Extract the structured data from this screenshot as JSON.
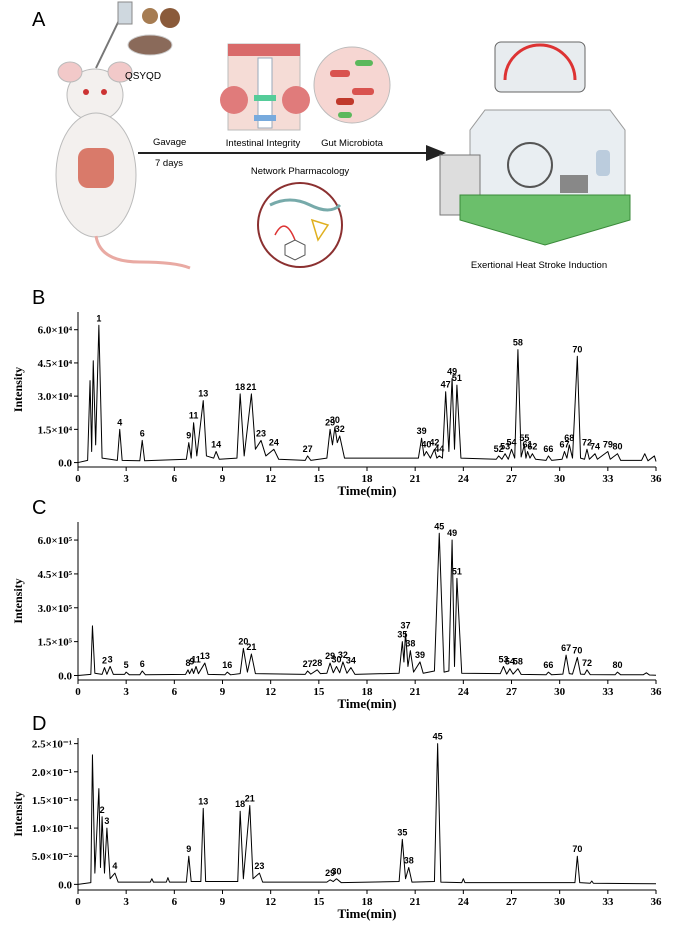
{
  "panel_a": {
    "label": "A",
    "drug": "QSYQD",
    "gavage": "Gavage",
    "duration": "7 days",
    "intestinal": "Intestinal Integrity",
    "microbiota": "Gut Microbiota",
    "network": "Network Pharmacology",
    "model": "Exertional Heat Stroke Induction"
  },
  "chart_data": [
    {
      "type": "line",
      "panel": "B",
      "ylabel": "Intensity",
      "xlabel": "Time(min)",
      "color": "#000000",
      "xlim": [
        0,
        36
      ],
      "xticks": [
        0,
        3,
        6,
        9,
        12,
        15,
        18,
        21,
        24,
        27,
        30,
        33,
        36
      ],
      "ylim": [
        -2000,
        68000
      ],
      "yticks": [
        {
          "value": 0,
          "label": "0.0"
        },
        {
          "value": 15000,
          "label": "1.5×10⁴"
        },
        {
          "value": 30000,
          "label": "3.0×10⁴"
        },
        {
          "value": 45000,
          "label": "4.5×10⁴"
        },
        {
          "value": 60000,
          "label": "6.0×10⁴"
        }
      ],
      "x": [
        0,
        0.6,
        0.75,
        0.85,
        0.95,
        1.1,
        1.3,
        1.5,
        2.0,
        2.45,
        2.6,
        2.75,
        3.85,
        4.0,
        4.15,
        6.75,
        6.9,
        7.05,
        7.2,
        7.4,
        7.8,
        8.0,
        8.45,
        8.6,
        8.8,
        9.9,
        10.1,
        10.35,
        10.8,
        11.05,
        11.4,
        11.7,
        12.2,
        12.5,
        14.15,
        14.3,
        14.5,
        15.5,
        15.7,
        15.85,
        16.0,
        16.15,
        16.3,
        16.6,
        21.2,
        21.4,
        21.55,
        21.7,
        21.95,
        22.2,
        22.35,
        22.5,
        22.7,
        22.9,
        23.1,
        23.3,
        23.45,
        23.6,
        23.85,
        26.05,
        26.2,
        26.4,
        26.6,
        26.8,
        27.0,
        27.2,
        27.4,
        27.6,
        27.8,
        27.9,
        28.0,
        28.15,
        28.3,
        28.5,
        29.15,
        29.3,
        29.5,
        30.15,
        30.3,
        30.45,
        30.6,
        30.8,
        31.1,
        31.3,
        31.55,
        31.7,
        31.85,
        32.2,
        32.35,
        33.0,
        33.15,
        33.6,
        33.8,
        35.1,
        35.3,
        35.5,
        35.9,
        36
      ],
      "values": [
        0,
        1000,
        37000,
        5000,
        46000,
        8000,
        62000,
        2000,
        1500,
        1000,
        15000,
        1000,
        800,
        10000,
        800,
        1500,
        9000,
        2000,
        18000,
        3000,
        28000,
        3000,
        2000,
        5000,
        1500,
        2000,
        31000,
        3000,
        31000,
        6000,
        10000,
        3000,
        6000,
        1500,
        1000,
        3000,
        1000,
        2000,
        15000,
        8000,
        16000,
        9000,
        12000,
        2000,
        2000,
        11000,
        3000,
        5000,
        2000,
        6000,
        2000,
        3000,
        2000,
        32000,
        5000,
        38000,
        6000,
        35000,
        2000,
        1500,
        3000,
        1500,
        4000,
        1500,
        6000,
        2000,
        51000,
        2500,
        8000,
        2000,
        5000,
        2000,
        4000,
        1500,
        1000,
        3000,
        1000,
        1500,
        5000,
        2000,
        8000,
        2000,
        48000,
        2000,
        1500,
        6000,
        1500,
        4000,
        1500,
        5000,
        1500,
        4000,
        1000,
        1000,
        4000,
        800,
        3000,
        500
      ],
      "annotations": [
        {
          "text": "1",
          "x": 1.3,
          "y": 62000
        },
        {
          "text": "4",
          "x": 2.6,
          "y": 15000
        },
        {
          "text": "6",
          "x": 4.0,
          "y": 10000
        },
        {
          "text": "9",
          "x": 6.9,
          "y": 9000
        },
        {
          "text": "11",
          "x": 7.2,
          "y": 18000
        },
        {
          "text": "13",
          "x": 7.8,
          "y": 28000
        },
        {
          "text": "14",
          "x": 8.6,
          "y": 5000
        },
        {
          "text": "18",
          "x": 10.1,
          "y": 31000
        },
        {
          "text": "21",
          "x": 10.8,
          "y": 31000
        },
        {
          "text": "23",
          "x": 11.4,
          "y": 10000
        },
        {
          "text": "24",
          "x": 12.2,
          "y": 6000
        },
        {
          "text": "27",
          "x": 14.3,
          "y": 3000
        },
        {
          "text": "29",
          "x": 15.7,
          "y": 15000
        },
        {
          "text": "30",
          "x": 16.0,
          "y": 16000
        },
        {
          "text": "32",
          "x": 16.3,
          "y": 12000
        },
        {
          "text": "39",
          "x": 21.4,
          "y": 11000
        },
        {
          "text": "40",
          "x": 21.7,
          "y": 5000
        },
        {
          "text": "42",
          "x": 22.2,
          "y": 6000
        },
        {
          "text": "44",
          "x": 22.5,
          "y": 3000
        },
        {
          "text": "47",
          "x": 22.9,
          "y": 32000
        },
        {
          "text": "49",
          "x": 23.3,
          "y": 38000
        },
        {
          "text": "51",
          "x": 23.6,
          "y": 35000
        },
        {
          "text": "52",
          "x": 26.2,
          "y": 3000
        },
        {
          "text": "53",
          "x": 26.6,
          "y": 4000
        },
        {
          "text": "54",
          "x": 27.0,
          "y": 6000
        },
        {
          "text": "58",
          "x": 27.4,
          "y": 51000
        },
        {
          "text": "55",
          "x": 27.8,
          "y": 8000
        },
        {
          "text": "61",
          "x": 28.0,
          "y": 5000
        },
        {
          "text": "62",
          "x": 28.3,
          "y": 4000
        },
        {
          "text": "66",
          "x": 29.3,
          "y": 3000
        },
        {
          "text": "67",
          "x": 30.3,
          "y": 5000
        },
        {
          "text": "68",
          "x": 30.6,
          "y": 8000
        },
        {
          "text": "70",
          "x": 31.1,
          "y": 48000
        },
        {
          "text": "72",
          "x": 31.7,
          "y": 6000
        },
        {
          "text": "74",
          "x": 32.2,
          "y": 4000
        },
        {
          "text": "79",
          "x": 33.0,
          "y": 5000
        },
        {
          "text": "80",
          "x": 33.6,
          "y": 4000
        }
      ]
    },
    {
      "type": "line",
      "panel": "C",
      "ylabel": "Intensity",
      "xlabel": "Time(min)",
      "color": "#000000",
      "xlim": [
        0,
        36
      ],
      "xticks": [
        0,
        3,
        6,
        9,
        12,
        15,
        18,
        21,
        24,
        27,
        30,
        33,
        36
      ],
      "ylim": [
        -20000,
        680000
      ],
      "yticks": [
        {
          "value": 0,
          "label": "0.0"
        },
        {
          "value": 150000,
          "label": "1.5×10⁵"
        },
        {
          "value": 300000,
          "label": "3.0×10⁵"
        },
        {
          "value": 450000,
          "label": "4.5×10⁵"
        },
        {
          "value": 600000,
          "label": "6.0×10⁵"
        }
      ],
      "x": [
        0,
        0.8,
        0.9,
        1.05,
        1.5,
        1.65,
        1.8,
        2.0,
        2.2,
        2.9,
        3.0,
        3.2,
        3.85,
        4.0,
        4.2,
        6.7,
        6.85,
        6.95,
        7.1,
        7.2,
        7.35,
        7.5,
        7.9,
        8.1,
        9.15,
        9.3,
        9.5,
        10.1,
        10.3,
        10.55,
        10.8,
        11.05,
        14.15,
        14.3,
        14.5,
        14.9,
        15.1,
        15.5,
        15.7,
        15.9,
        16.1,
        16.3,
        16.5,
        16.75,
        17.0,
        17.25,
        20.0,
        20.2,
        20.3,
        20.4,
        20.55,
        20.7,
        20.9,
        21.3,
        21.5,
        22.2,
        22.5,
        22.8,
        23.1,
        23.3,
        23.45,
        23.6,
        23.9,
        26.3,
        26.5,
        26.7,
        26.9,
        27.1,
        27.4,
        27.6,
        29.15,
        29.3,
        29.5,
        30.2,
        30.4,
        30.6,
        30.8,
        31.1,
        31.3,
        31.55,
        31.7,
        31.9,
        33.45,
        33.6,
        33.8,
        35.2,
        35.4,
        35.6,
        36
      ],
      "values": [
        0,
        5000,
        220000,
        10000,
        5000,
        35000,
        5000,
        40000,
        5000,
        5000,
        15000,
        3000,
        3000,
        20000,
        3000,
        5000,
        25000,
        8000,
        30000,
        9000,
        40000,
        8000,
        55000,
        5000,
        3000,
        15000,
        3000,
        8000,
        120000,
        15000,
        95000,
        8000,
        5000,
        20000,
        6000,
        25000,
        8000,
        10000,
        55000,
        12000,
        40000,
        12000,
        60000,
        10000,
        35000,
        5000,
        10000,
        150000,
        60000,
        190000,
        40000,
        110000,
        15000,
        60000,
        10000,
        20000,
        630000,
        15000,
        20000,
        600000,
        40000,
        430000,
        10000,
        8000,
        40000,
        6000,
        30000,
        6000,
        30000,
        5000,
        3000,
        15000,
        3000,
        6000,
        90000,
        8000,
        6000,
        80000,
        6000,
        5000,
        25000,
        4000,
        3000,
        15000,
        3000,
        3000,
        12000,
        2000,
        1000
      ],
      "annotations": [
        {
          "text": "2",
          "x": 1.65,
          "y": 35000
        },
        {
          "text": "3",
          "x": 2.0,
          "y": 40000
        },
        {
          "text": "5",
          "x": 3.0,
          "y": 15000
        },
        {
          "text": "6",
          "x": 4.0,
          "y": 20000
        },
        {
          "text": "8",
          "x": 6.85,
          "y": 25000
        },
        {
          "text": "9",
          "x": 7.1,
          "y": 30000
        },
        {
          "text": "11",
          "x": 7.35,
          "y": 40000
        },
        {
          "text": "13",
          "x": 7.9,
          "y": 55000
        },
        {
          "text": "16",
          "x": 9.3,
          "y": 15000
        },
        {
          "text": "20",
          "x": 10.3,
          "y": 120000
        },
        {
          "text": "21",
          "x": 10.8,
          "y": 95000
        },
        {
          "text": "27",
          "x": 14.3,
          "y": 20000
        },
        {
          "text": "28",
          "x": 14.9,
          "y": 25000
        },
        {
          "text": "29",
          "x": 15.7,
          "y": 55000
        },
        {
          "text": "30",
          "x": 16.1,
          "y": 40000
        },
        {
          "text": "32",
          "x": 16.5,
          "y": 60000
        },
        {
          "text": "34",
          "x": 17.0,
          "y": 35000
        },
        {
          "text": "35",
          "x": 20.2,
          "y": 150000
        },
        {
          "text": "37",
          "x": 20.4,
          "y": 190000
        },
        {
          "text": "38",
          "x": 20.7,
          "y": 110000
        },
        {
          "text": "39",
          "x": 21.3,
          "y": 60000
        },
        {
          "text": "45",
          "x": 22.5,
          "y": 630000
        },
        {
          "text": "49",
          "x": 23.3,
          "y": 600000
        },
        {
          "text": "51",
          "x": 23.6,
          "y": 430000
        },
        {
          "text": "53",
          "x": 26.5,
          "y": 40000
        },
        {
          "text": "54",
          "x": 26.9,
          "y": 30000
        },
        {
          "text": "58",
          "x": 27.4,
          "y": 30000
        },
        {
          "text": "66",
          "x": 29.3,
          "y": 15000
        },
        {
          "text": "67",
          "x": 30.4,
          "y": 90000
        },
        {
          "text": "70",
          "x": 31.1,
          "y": 80000
        },
        {
          "text": "72",
          "x": 31.7,
          "y": 25000
        },
        {
          "text": "80",
          "x": 33.6,
          "y": 15000
        }
      ]
    },
    {
      "type": "line",
      "panel": "D",
      "ylabel": "Intensity",
      "xlabel": "Time(min)",
      "color": "#000000",
      "xlim": [
        0,
        36
      ],
      "xticks": [
        0,
        3,
        6,
        9,
        12,
        15,
        18,
        21,
        24,
        27,
        30,
        33,
        36
      ],
      "ylim": [
        -0.01,
        0.26
      ],
      "yticks": [
        {
          "value": 0,
          "label": "0.0"
        },
        {
          "value": 0.05,
          "label": "5.0×10⁻²"
        },
        {
          "value": 0.1,
          "label": "1.0×10⁻¹"
        },
        {
          "value": 0.15,
          "label": "1.5×10⁻¹"
        },
        {
          "value": 0.2,
          "label": "2.0×10⁻¹"
        },
        {
          "value": 0.25,
          "label": "2.5×10⁻¹"
        }
      ],
      "x": [
        0,
        0.8,
        0.9,
        1.05,
        1.3,
        1.4,
        1.5,
        1.65,
        1.8,
        2.0,
        2.3,
        2.5,
        4.5,
        4.6,
        4.7,
        5.5,
        5.6,
        5.7,
        6.75,
        6.9,
        7.05,
        7.65,
        7.8,
        7.95,
        9.95,
        10.1,
        10.3,
        10.7,
        10.9,
        11.3,
        11.5,
        15.5,
        15.7,
        15.9,
        16.1,
        16.4,
        20.0,
        20.2,
        20.4,
        20.6,
        20.8,
        22.2,
        22.4,
        22.6,
        23.9,
        24.0,
        24.1,
        30.95,
        31.1,
        31.25,
        31.9,
        32.0,
        32.1,
        36
      ],
      "values": [
        0,
        0.003,
        0.23,
        0.02,
        0.17,
        0.03,
        0.12,
        0.02,
        0.1,
        0.01,
        0.02,
        0.004,
        0.004,
        0.01,
        0.004,
        0.004,
        0.012,
        0.004,
        0.004,
        0.05,
        0.005,
        0.005,
        0.135,
        0.005,
        0.005,
        0.13,
        0.01,
        0.14,
        0.01,
        0.02,
        0.004,
        0.004,
        0.008,
        0.005,
        0.01,
        0.003,
        0.005,
        0.08,
        0.01,
        0.03,
        0.004,
        0.005,
        0.25,
        0.004,
        0.003,
        0.01,
        0.003,
        0.003,
        0.05,
        0.003,
        0.002,
        0.006,
        0.002,
        0.001
      ],
      "annotations": [
        {
          "text": "2",
          "x": 1.5,
          "y": 0.12
        },
        {
          "text": "3",
          "x": 1.8,
          "y": 0.1
        },
        {
          "text": "4",
          "x": 2.3,
          "y": 0.02
        },
        {
          "text": "9",
          "x": 6.9,
          "y": 0.05
        },
        {
          "text": "13",
          "x": 7.8,
          "y": 0.135
        },
        {
          "text": "18",
          "x": 10.1,
          "y": 0.13
        },
        {
          "text": "21",
          "x": 10.7,
          "y": 0.14
        },
        {
          "text": "23",
          "x": 11.3,
          "y": 0.02
        },
        {
          "text": "29",
          "x": 15.7,
          "y": 0.008
        },
        {
          "text": "30",
          "x": 16.1,
          "y": 0.01
        },
        {
          "text": "35",
          "x": 20.2,
          "y": 0.08
        },
        {
          "text": "38",
          "x": 20.6,
          "y": 0.03
        },
        {
          "text": "45",
          "x": 22.4,
          "y": 0.25
        },
        {
          "text": "70",
          "x": 31.1,
          "y": 0.05
        }
      ]
    }
  ]
}
